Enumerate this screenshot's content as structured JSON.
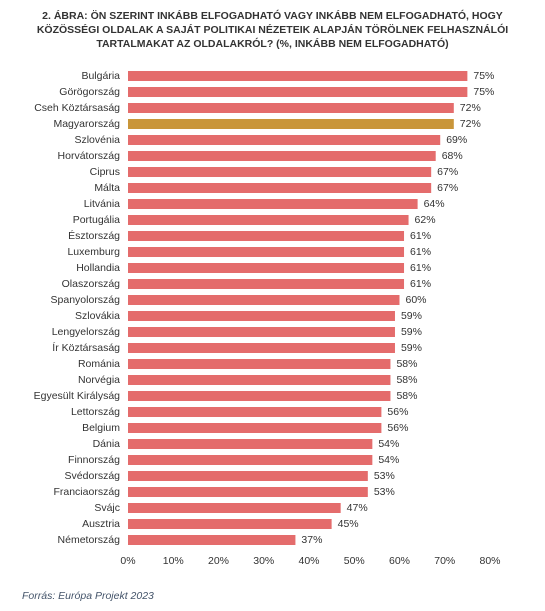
{
  "chart_data": {
    "type": "bar",
    "orientation": "horizontal",
    "title": "2. ÁBRA: ÖN SZERINT INKÁBB ELFOGADHATÓ VAGY INKÁBB NEM ELFOGADHATÓ, HOGY KÖZÖSSÉGI OLDALAK A SAJÁT POLITIKAI NÉZETEIK ALAPJÁN TÖRÖLNEK FELHASZNÁLÓI TARTALMAKAT AZ OLDALAKRÓL? (%, INKÁBB NEM ELFOGADHATÓ)",
    "source": "Forrás: Európa Projekt 2023",
    "categories": [
      "Bulgária",
      "Görögország",
      "Cseh Köztársaság",
      "Magyarország",
      "Szlovénia",
      "Horvátország",
      "Ciprus",
      "Málta",
      "Litvánia",
      "Portugália",
      "Észtország",
      "Luxemburg",
      "Hollandia",
      "Olaszország",
      "Spanyolország",
      "Szlovákia",
      "Lengyelország",
      "Ír Köztársaság",
      "Románia",
      "Norvégia",
      "Egyesült Királyság",
      "Lettország",
      "Belgium",
      "Dánia",
      "Finnország",
      "Svédország",
      "Franciaország",
      "Svájc",
      "Ausztria",
      "Németország"
    ],
    "values": [
      75,
      75,
      72,
      72,
      69,
      68,
      67,
      67,
      64,
      62,
      61,
      61,
      61,
      61,
      60,
      59,
      59,
      59,
      58,
      58,
      58,
      56,
      56,
      54,
      54,
      53,
      53,
      47,
      45,
      37
    ],
    "value_labels": [
      "75%",
      "75%",
      "72%",
      "72%",
      "69%",
      "68%",
      "67%",
      "67%",
      "64%",
      "62%",
      "61%",
      "61%",
      "61%",
      "61%",
      "60%",
      "59%",
      "59%",
      "59%",
      "58%",
      "58%",
      "58%",
      "56%",
      "56%",
      "54%",
      "54%",
      "53%",
      "53%",
      "47%",
      "45%",
      "37%"
    ],
    "colors": [
      "#e46c6c",
      "#e46c6c",
      "#e46c6c",
      "#c9963a",
      "#e46c6c",
      "#e46c6c",
      "#e46c6c",
      "#e46c6c",
      "#e46c6c",
      "#e46c6c",
      "#e46c6c",
      "#e46c6c",
      "#e46c6c",
      "#e46c6c",
      "#e46c6c",
      "#e46c6c",
      "#e46c6c",
      "#e46c6c",
      "#e46c6c",
      "#e46c6c",
      "#e46c6c",
      "#e46c6c",
      "#e46c6c",
      "#e46c6c",
      "#e46c6c",
      "#e46c6c",
      "#e46c6c",
      "#e46c6c",
      "#e46c6c",
      "#e46c6c"
    ],
    "xlim": [
      0,
      80
    ],
    "xticks": [
      {
        "value": 0,
        "label": "0%"
      },
      {
        "value": 10,
        "label": "10%"
      },
      {
        "value": 20,
        "label": "20%"
      },
      {
        "value": 30,
        "label": "30%"
      },
      {
        "value": 40,
        "label": "40%"
      },
      {
        "value": 50,
        "label": "50%"
      },
      {
        "value": 60,
        "label": "60%"
      },
      {
        "value": 70,
        "label": "70%"
      },
      {
        "value": 80,
        "label": "80%"
      }
    ],
    "grid": false
  }
}
